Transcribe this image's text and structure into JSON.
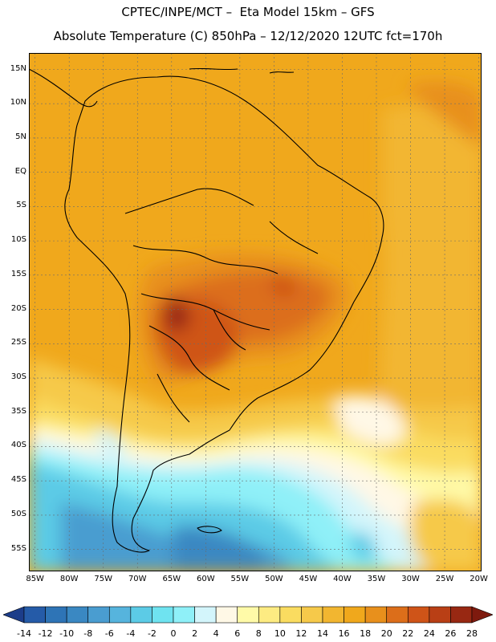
{
  "header": {
    "title_line1": "CPTEC/INPE/MCT –  Eta Model 15km – GFS",
    "title_line2": "Absolute Temperature (C) 850hPa – 12/12/2020 12UTC fct=170h"
  },
  "map": {
    "lat_labels": [
      "15N",
      "10N",
      "5N",
      "EQ",
      "5S",
      "10S",
      "15S",
      "20S",
      "25S",
      "30S",
      "35S",
      "40S",
      "45S",
      "50S",
      "55S"
    ],
    "lat_values": [
      15,
      10,
      5,
      0,
      -5,
      -10,
      -15,
      -20,
      -25,
      -30,
      -35,
      -40,
      -45,
      -50,
      -55
    ],
    "lon_labels": [
      "85W",
      "80W",
      "75W",
      "70W",
      "65W",
      "60W",
      "55W",
      "50W",
      "45W",
      "40W",
      "35W",
      "30W",
      "25W",
      "20W"
    ],
    "lon_values": [
      -85,
      -80,
      -75,
      -70,
      -65,
      -60,
      -55,
      -50,
      -45,
      -40,
      -35,
      -30,
      -25,
      -20
    ],
    "extent": {
      "lon_min": -85.9,
      "lon_max": -19.6,
      "lat_min": -58.2,
      "lat_max": 17.4
    }
  },
  "legend": {
    "labels": [
      "-14",
      "-12",
      "-10",
      "-8",
      "-6",
      "-4",
      "-2",
      "0",
      "2",
      "4",
      "6",
      "8",
      "10",
      "12",
      "14",
      "16",
      "18",
      "20",
      "22",
      "24",
      "26",
      "28"
    ],
    "colors": [
      "#1c3d8a",
      "#255ba8",
      "#2e74b6",
      "#3a88c2",
      "#4a9dd0",
      "#56b4dd",
      "#5ccbe6",
      "#6fe3f0",
      "#8ff0f8",
      "#d3f5fb",
      "#fff8e6",
      "#fffaa8",
      "#fdeb82",
      "#fadc60",
      "#f6c94a",
      "#f2b630",
      "#f0a81c",
      "#e8901c",
      "#dc6e1a",
      "#cf5418",
      "#b93f15",
      "#982812",
      "#7e1a0e"
    ]
  }
}
